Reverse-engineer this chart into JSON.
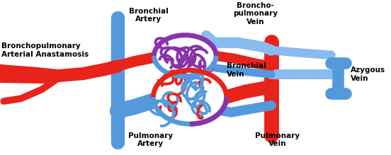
{
  "labels": {
    "bronchial_artery": "Bronchial\nArtery",
    "broncho_pulmonary_vein": "Broncho-\npulmonary\nVein",
    "bronchial_vein": "Bronchial\nVein",
    "azygous_vein": "Azygous\nVein",
    "bronchopulmonary_anastomosis": "Bronchopulmonary\nArterial Anastamosis",
    "pulmonary_artery": "Pulmonary\nArtery",
    "pulmonary_vein": "Pulmonary\nVein"
  },
  "colors": {
    "red": "#E8231A",
    "blue": "#5599DD",
    "light_blue": "#88BBEE",
    "purple": "#8833AA",
    "purple2": "#AA44BB",
    "background": "#FFFFFF"
  },
  "figsize": [
    5.52,
    2.19
  ],
  "dpi": 100
}
